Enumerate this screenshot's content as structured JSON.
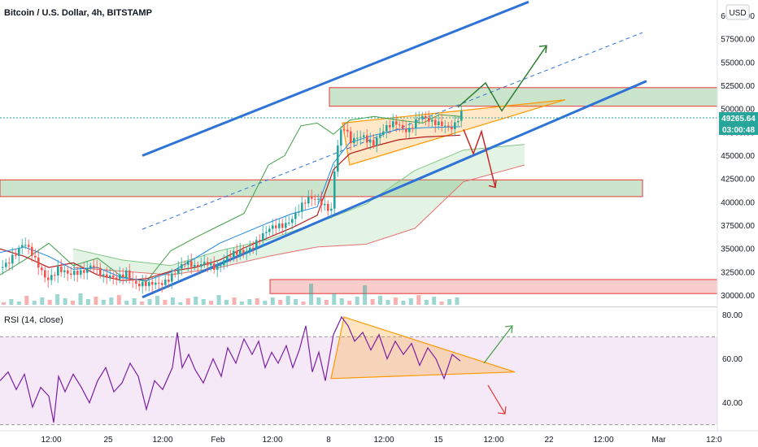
{
  "chart_data": [
    {
      "type": "candlestick",
      "title": "Bitcoin / U.S. Dollar, 4h, BITSTAMP",
      "currency_label": "USD",
      "ylim": [
        29000,
        61000
      ],
      "y_ticks": [
        "60000.00",
        "57500.00",
        "55000.00",
        "52500.00",
        "50000.00",
        "47500.00",
        "45000.00",
        "42500.00",
        "40000.00",
        "37500.00",
        "35000.00",
        "32500.00",
        "30000.00"
      ],
      "last_price": "49265.64",
      "countdown": "03:00:48",
      "x_tick_labels": [
        "12:00",
        "25",
        "12:00",
        "Feb",
        "12:00",
        "8",
        "12:00",
        "15",
        "12:00",
        "22",
        "12:00",
        "Mar",
        "12:0"
      ],
      "close_path": [
        [
          0,
          33000
        ],
        [
          14,
          34500
        ],
        [
          28,
          35500
        ],
        [
          42,
          33500
        ],
        [
          56,
          32000
        ],
        [
          70,
          33000
        ],
        [
          84,
          31800
        ],
        [
          98,
          32500
        ],
        [
          112,
          33800
        ],
        [
          126,
          31800
        ],
        [
          140,
          31500
        ],
        [
          154,
          32800
        ],
        [
          168,
          31200
        ],
        [
          182,
          30800
        ],
        [
          196,
          31300
        ],
        [
          210,
          32500
        ],
        [
          224,
          33200
        ],
        [
          238,
          32800
        ],
        [
          252,
          34000
        ],
        [
          266,
          33000
        ],
        [
          280,
          33800
        ],
        [
          294,
          34800
        ],
        [
          308,
          35500
        ],
        [
          322,
          36200
        ],
        [
          336,
          37200
        ],
        [
          350,
          38000
        ],
        [
          364,
          39000
        ],
        [
          378,
          40000
        ],
        [
          392,
          40300
        ],
        [
          406,
          39500
        ],
        [
          412,
          45500
        ],
        [
          420,
          48000
        ],
        [
          430,
          46200
        ],
        [
          444,
          47500
        ],
        [
          458,
          46500
        ],
        [
          472,
          47500
        ],
        [
          486,
          48500
        ],
        [
          500,
          48000
        ],
        [
          514,
          49000
        ],
        [
          528,
          48300
        ],
        [
          542,
          48700
        ],
        [
          556,
          48200
        ],
        [
          566,
          49265
        ]
      ],
      "ichimoku_lines": {
        "green": [
          [
            0,
            32200
          ],
          [
            30,
            33800
          ],
          [
            60,
            35600
          ],
          [
            90,
            33200
          ],
          [
            120,
            34000
          ],
          [
            150,
            32000
          ],
          [
            180,
            31500
          ],
          [
            210,
            34800
          ],
          [
            240,
            36200
          ],
          [
            270,
            37500
          ],
          [
            300,
            38800
          ],
          [
            330,
            44000
          ],
          [
            350,
            45000
          ],
          [
            370,
            48200
          ],
          [
            390,
            48500
          ],
          [
            410,
            47300
          ],
          [
            430,
            48800
          ],
          [
            460,
            49200
          ],
          [
            490,
            48800
          ],
          [
            520,
            48500
          ],
          [
            540,
            49400
          ],
          [
            566,
            49200
          ]
        ],
        "red": [
          [
            0,
            35000
          ],
          [
            30,
            34200
          ],
          [
            60,
            33000
          ],
          [
            90,
            33500
          ],
          [
            120,
            32200
          ],
          [
            150,
            31600
          ],
          [
            180,
            31800
          ],
          [
            210,
            32600
          ],
          [
            240,
            33000
          ],
          [
            270,
            33800
          ],
          [
            300,
            35100
          ],
          [
            330,
            36200
          ],
          [
            360,
            37300
          ],
          [
            390,
            38600
          ],
          [
            410,
            43500
          ],
          [
            430,
            45200
          ],
          [
            460,
            46000
          ],
          [
            490,
            46700
          ],
          [
            520,
            47000
          ],
          [
            566,
            47200
          ]
        ],
        "blue": [
          [
            0,
            34600
          ],
          [
            30,
            35200
          ],
          [
            60,
            34200
          ],
          [
            90,
            32800
          ],
          [
            120,
            33000
          ],
          [
            150,
            31900
          ],
          [
            180,
            31600
          ],
          [
            210,
            32500
          ],
          [
            240,
            34000
          ],
          [
            270,
            35600
          ],
          [
            300,
            36700
          ],
          [
            330,
            37800
          ],
          [
            360,
            38800
          ],
          [
            390,
            39500
          ],
          [
            410,
            44200
          ],
          [
            430,
            46400
          ],
          [
            460,
            47200
          ],
          [
            490,
            47800
          ],
          [
            520,
            48000
          ],
          [
            566,
            48100
          ]
        ]
      },
      "cloud": {
        "upper": [
          [
            90,
            35000
          ],
          [
            150,
            33800
          ],
          [
            210,
            33200
          ],
          [
            270,
            34800
          ],
          [
            330,
            36000
          ],
          [
            390,
            37800
          ],
          [
            450,
            39800
          ],
          [
            510,
            43400
          ],
          [
            570,
            45600
          ],
          [
            645,
            46200
          ]
        ],
        "lower": [
          [
            90,
            33000
          ],
          [
            150,
            32600
          ],
          [
            210,
            32200
          ],
          [
            270,
            33000
          ],
          [
            330,
            34200
          ],
          [
            390,
            35200
          ],
          [
            450,
            35500
          ],
          [
            510,
            37200
          ],
          [
            570,
            42200
          ],
          [
            645,
            44000
          ]
        ]
      },
      "channel_lines": [
        {
          "from": [
            175,
            45000
          ],
          "to": [
            650,
            61500
          ],
          "style": "solid",
          "color": "#2f73d6"
        },
        {
          "from": [
            175,
            37100
          ],
          "to": [
            790,
            58200
          ],
          "style": "dashed",
          "color": "#2f73d6"
        },
        {
          "from": [
            175,
            29800
          ],
          "to": [
            795,
            53000
          ],
          "style": "solid",
          "color": "#2f73d6"
        }
      ],
      "zones": [
        {
          "x0": 405,
          "x1": 882,
          "y0": 50300,
          "y1": 52300,
          "fill": "rgba(67,160,71,0.28)",
          "stroke": "#e53935"
        },
        {
          "x0": 0,
          "x1": 790,
          "y0": 40600,
          "y1": 42400,
          "fill": "rgba(67,160,71,0.28)",
          "stroke": "#e53935"
        },
        {
          "x0": 332,
          "x1": 882,
          "y0": 30200,
          "y1": 31700,
          "fill": "rgba(229,57,53,0.25)",
          "stroke": "#e53935"
        }
      ],
      "triangle": [
        [
          421,
          48500
        ],
        [
          695,
          51000
        ],
        [
          430,
          44000
        ]
      ],
      "projection_up": [
        [
          563,
          50200
        ],
        [
          597,
          52800
        ],
        [
          617,
          49800
        ],
        [
          672,
          56800
        ]
      ],
      "projection_down": [
        [
          570,
          47800
        ],
        [
          582,
          45200
        ],
        [
          592,
          47600
        ],
        [
          609,
          41600
        ]
      ],
      "volume": [
        3,
        7,
        4,
        11,
        5,
        9,
        6,
        13,
        8,
        5,
        14,
        7,
        10,
        6,
        9,
        12,
        5,
        8,
        4,
        7,
        11,
        6,
        9,
        3,
        8,
        10,
        7,
        5,
        12,
        6,
        9,
        4,
        7,
        8,
        5,
        9,
        6,
        11,
        7,
        4,
        26,
        9,
        6,
        14,
        8,
        5,
        10,
        24,
        7,
        11,
        6,
        9,
        5,
        8,
        12,
        6,
        10,
        4,
        7,
        9
      ],
      "rsi": {
        "label": "RSI (14, close)",
        "ylim": [
          28,
          82
        ],
        "ticks": [
          "80.00",
          "60.00",
          "40.00"
        ],
        "band": [
          30,
          70
        ],
        "series": [
          [
            0,
            50
          ],
          [
            10,
            54
          ],
          [
            20,
            46
          ],
          [
            30,
            53
          ],
          [
            40,
            38
          ],
          [
            50,
            47
          ],
          [
            60,
            43
          ],
          [
            66,
            31
          ],
          [
            72,
            52
          ],
          [
            80,
            45
          ],
          [
            90,
            53
          ],
          [
            100,
            47
          ],
          [
            110,
            40
          ],
          [
            120,
            50
          ],
          [
            130,
            56
          ],
          [
            140,
            45
          ],
          [
            150,
            49
          ],
          [
            160,
            58
          ],
          [
            170,
            52
          ],
          [
            180,
            37
          ],
          [
            190,
            50
          ],
          [
            200,
            46
          ],
          [
            212,
            56
          ],
          [
            218,
            72
          ],
          [
            224,
            56
          ],
          [
            232,
            62
          ],
          [
            240,
            55
          ],
          [
            250,
            49
          ],
          [
            262,
            60
          ],
          [
            272,
            52
          ],
          [
            280,
            65
          ],
          [
            290,
            58
          ],
          [
            300,
            69
          ],
          [
            310,
            62
          ],
          [
            318,
            68
          ],
          [
            326,
            56
          ],
          [
            334,
            63
          ],
          [
            342,
            58
          ],
          [
            352,
            66
          ],
          [
            360,
            56
          ],
          [
            368,
            64
          ],
          [
            376,
            75
          ],
          [
            384,
            54
          ],
          [
            392,
            63
          ],
          [
            400,
            50
          ],
          [
            410,
            71
          ],
          [
            420,
            79
          ],
          [
            428,
            75
          ],
          [
            436,
            68
          ],
          [
            446,
            72
          ],
          [
            456,
            64
          ],
          [
            466,
            71
          ],
          [
            476,
            60
          ],
          [
            486,
            68
          ],
          [
            496,
            62
          ],
          [
            506,
            67
          ],
          [
            516,
            57
          ],
          [
            526,
            65
          ],
          [
            536,
            60
          ],
          [
            546,
            51
          ],
          [
            556,
            62
          ],
          [
            566,
            59
          ]
        ],
        "triangle": [
          [
            407,
            51
          ],
          [
            423,
            79
          ],
          [
            633,
            54
          ]
        ],
        "arrow_up": [
          [
            595,
            58
          ],
          [
            630,
            75
          ]
        ],
        "arrow_down": [
          [
            600,
            48
          ],
          [
            621,
            35
          ]
        ]
      }
    }
  ]
}
